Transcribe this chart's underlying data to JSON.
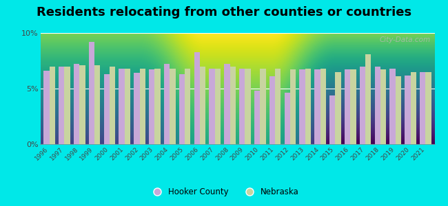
{
  "title": "Residents relocating from other counties or countries",
  "years": [
    1996,
    1997,
    1998,
    1999,
    2000,
    2001,
    2002,
    2003,
    2004,
    2005,
    2006,
    2007,
    2008,
    2009,
    2010,
    2011,
    2012,
    2013,
    2014,
    2015,
    2016,
    2017,
    2018,
    2019,
    2020,
    2021
  ],
  "hooker_county": [
    6.6,
    7.0,
    7.2,
    9.2,
    6.3,
    6.8,
    6.4,
    6.7,
    7.2,
    6.3,
    8.3,
    6.8,
    7.2,
    6.8,
    4.8,
    6.1,
    4.6,
    6.7,
    6.7,
    4.4,
    6.7,
    7.0,
    7.0,
    6.8,
    6.2,
    6.5
  ],
  "nebraska": [
    7.0,
    7.0,
    7.1,
    7.1,
    7.0,
    6.8,
    6.8,
    6.8,
    6.8,
    6.8,
    7.0,
    6.8,
    7.0,
    6.8,
    6.8,
    6.8,
    6.7,
    6.8,
    6.8,
    6.5,
    6.7,
    8.1,
    6.7,
    6.1,
    6.5,
    6.5
  ],
  "hooker_color": "#c8a8d8",
  "nebraska_color": "#c8d4a0",
  "bg_top": "#f0faf0",
  "bg_bottom": "#dff0d8",
  "outer_background": "#00e8e8",
  "ylim": [
    0,
    10
  ],
  "yticks": [
    0,
    5,
    10
  ],
  "ytick_labels": [
    "0%",
    "5%",
    "10%"
  ],
  "title_fontsize": 13,
  "watermark": "City-Data.com"
}
